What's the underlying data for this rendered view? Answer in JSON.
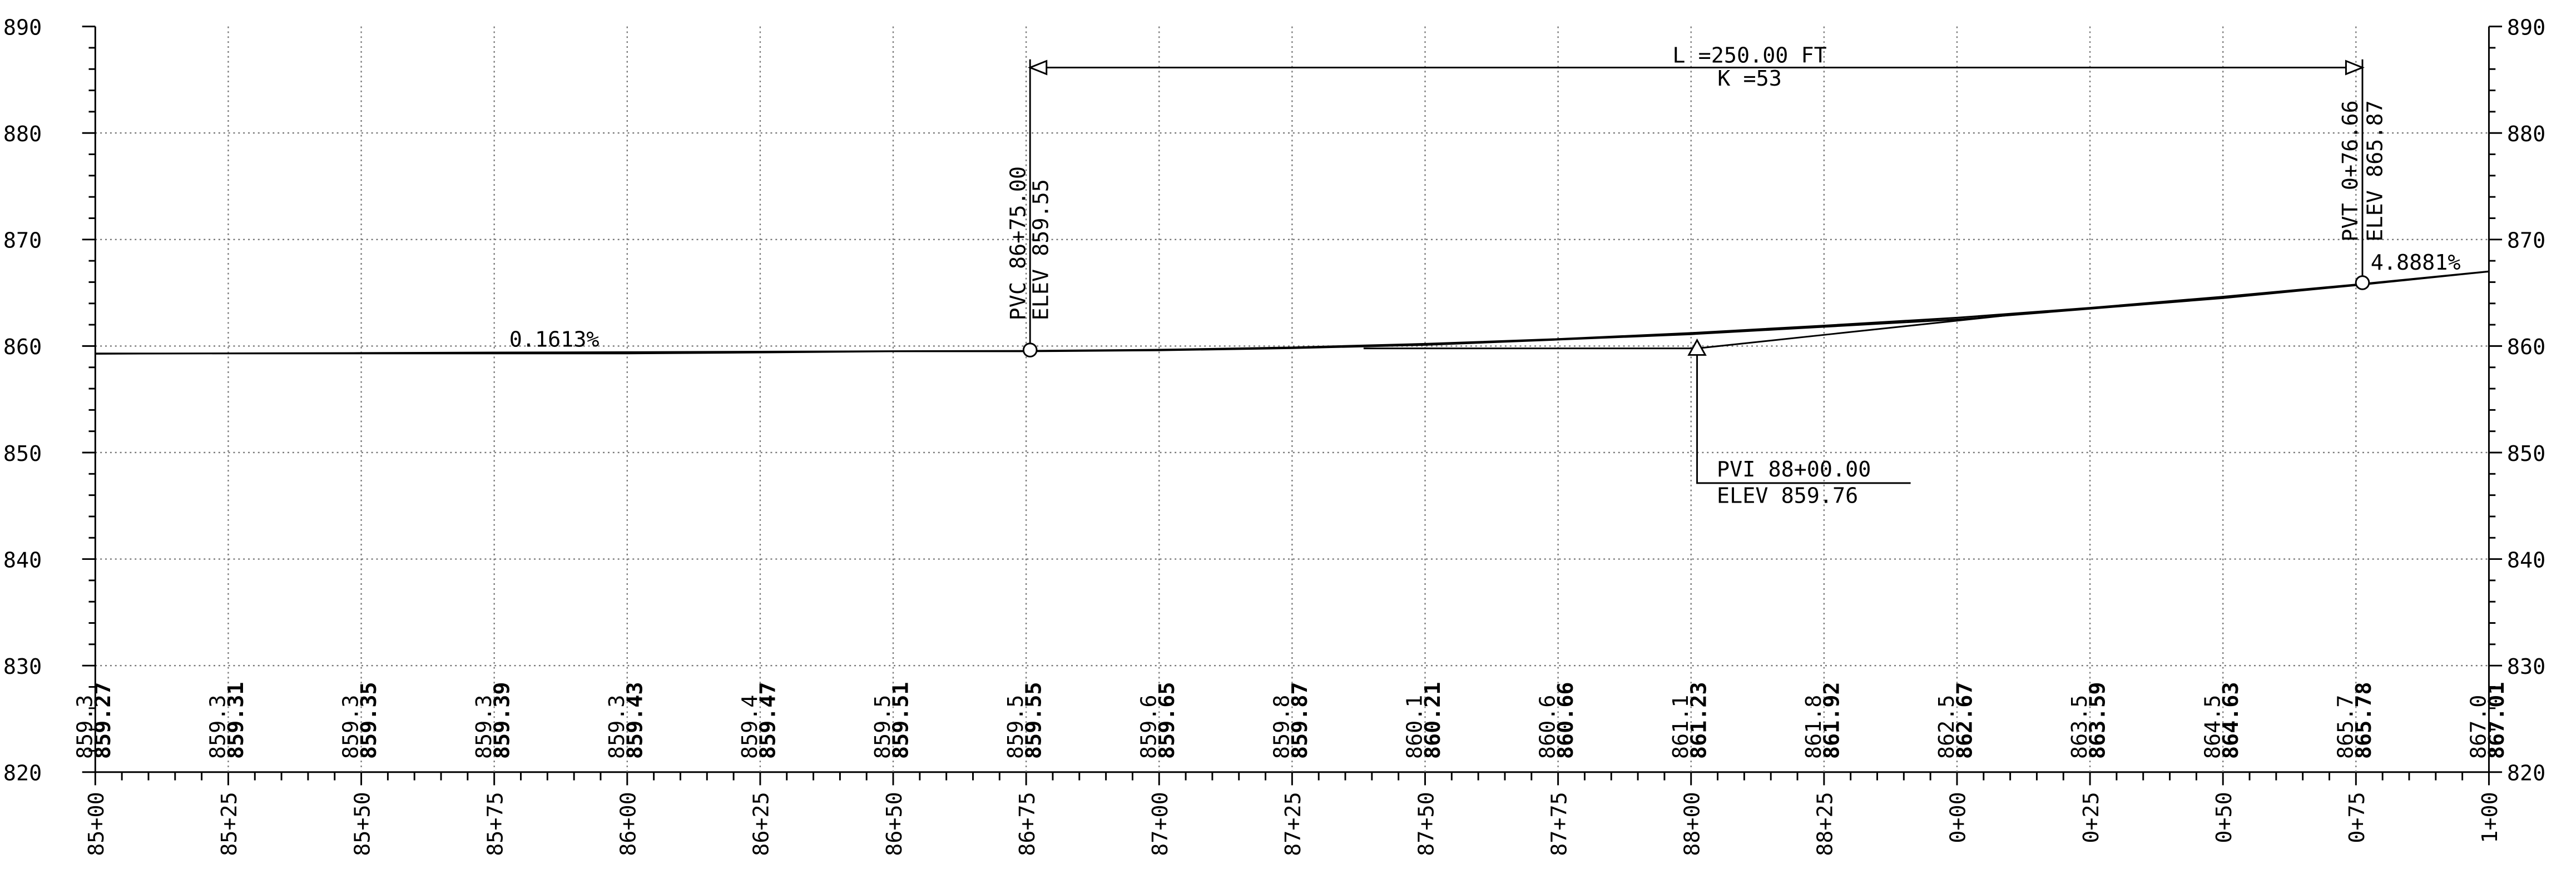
{
  "y_labels": [
    "890",
    "880",
    "870",
    "860",
    "850",
    "840",
    "830",
    "820"
  ],
  "stations": [
    "85+00",
    "85+25",
    "85+50",
    "85+75",
    "86+00",
    "86+25",
    "86+50",
    "86+75",
    "87+00",
    "87+25",
    "87+50",
    "87+75",
    "88+00",
    "88+25",
    "0+00",
    "0+25",
    "0+50",
    "0+75",
    "1+00"
  ],
  "elevations": [
    {
      "existing": "859.3",
      "proposed": "859.27"
    },
    {
      "existing": "859.3",
      "proposed": "859.31"
    },
    {
      "existing": "859.3",
      "proposed": "859.35"
    },
    {
      "existing": "859.3",
      "proposed": "859.39"
    },
    {
      "existing": "859.3",
      "proposed": "859.43"
    },
    {
      "existing": "859.4",
      "proposed": "859.47"
    },
    {
      "existing": "859.5",
      "proposed": "859.51"
    },
    {
      "existing": "859.5",
      "proposed": "859.55"
    },
    {
      "existing": "859.6",
      "proposed": "859.65"
    },
    {
      "existing": "859.8",
      "proposed": "859.87"
    },
    {
      "existing": "860.1",
      "proposed": "860.21"
    },
    {
      "existing": "860.6",
      "proposed": "860.66"
    },
    {
      "existing": "861.1",
      "proposed": "861.23"
    },
    {
      "existing": "861.8",
      "proposed": "861.92"
    },
    {
      "existing": "862.5",
      "proposed": "862.67"
    },
    {
      "existing": "863.5",
      "proposed": "863.59"
    },
    {
      "existing": "864.5",
      "proposed": "864.63"
    },
    {
      "existing": "865.7",
      "proposed": "865.78"
    },
    {
      "existing": "867.0",
      "proposed": "867.01"
    }
  ],
  "annotations": {
    "grade_back": "0.1613%",
    "grade_ahead": "4.8881%",
    "curve_length": "L =250.00 FT",
    "k_value": "K =53",
    "pvc": {
      "station": "PVC 86+75.00",
      "elev": "ELEV 859.55"
    },
    "pvi": {
      "station": "PVI 88+00.00",
      "elev": "ELEV 859.76"
    },
    "pvt": {
      "station": "PVT 0+76.66",
      "elev": "ELEV 865.87"
    }
  }
}
